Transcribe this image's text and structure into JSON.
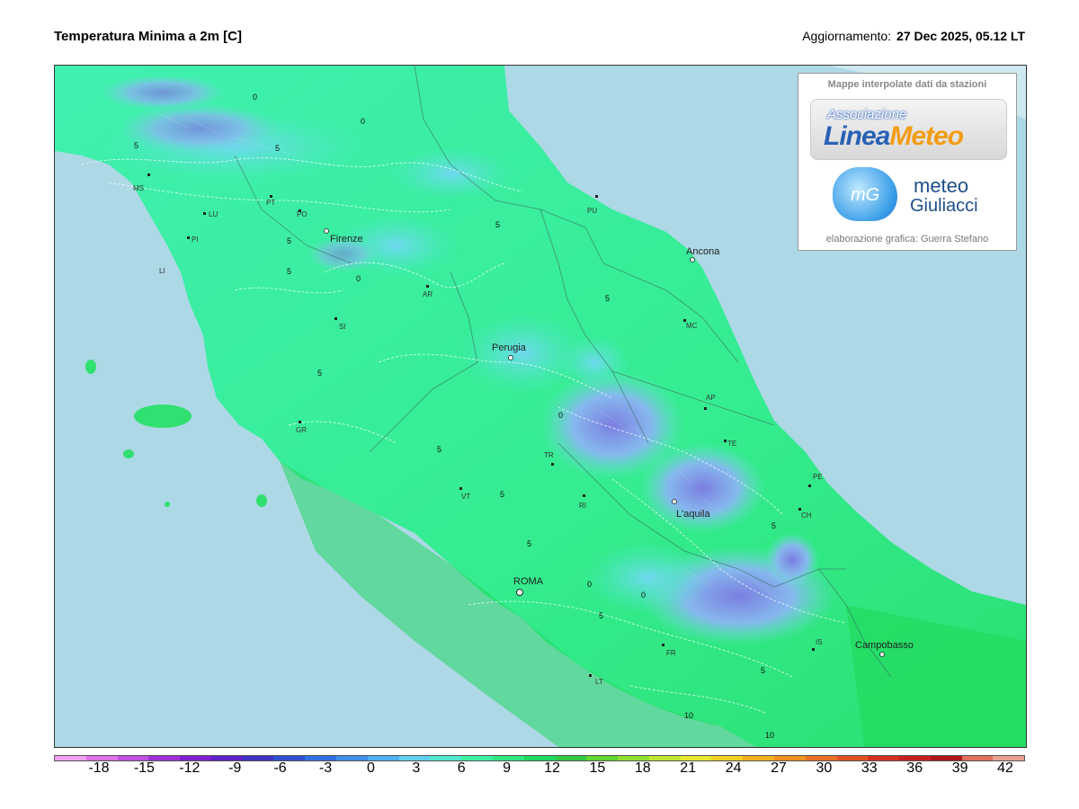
{
  "header": {
    "title": "Temperatura Minima a 2m [C]",
    "update_label": "Aggiornamento:",
    "update_value": "27 Dec 2025, 05.12 LT"
  },
  "logo": {
    "top_text": "Mappe interpolate dati da stazioni",
    "lineameteo_assoc": "Associazione",
    "lineameteo_name_a": "Linea",
    "lineameteo_name_b": "Meteo",
    "mg_abbrev": "mG",
    "mg_word1": "meteo",
    "mg_word2": "Giuliacci",
    "credit": "elaborazione grafica: Guerra Stefano"
  },
  "map": {
    "cities": [
      {
        "id": "firenze",
        "name": "Firenze"
      },
      {
        "id": "ancona",
        "name": "Ancona"
      },
      {
        "id": "perugia",
        "name": "Perugia"
      },
      {
        "id": "laquila",
        "name": "L'aquila"
      },
      {
        "id": "roma",
        "name": "ROMA"
      },
      {
        "id": "campobasso",
        "name": "Campobasso"
      }
    ],
    "provinces": [
      "MS",
      "LU",
      "PI",
      "LI",
      "PT",
      "PO",
      "AR",
      "SI",
      "GR",
      "PU",
      "MC",
      "AP",
      "TE",
      "PE",
      "CH",
      "TR",
      "RI",
      "VT",
      "FR",
      "LT",
      "IS"
    ],
    "isotherm_labels": [
      "0",
      "5",
      "10"
    ],
    "colors": {
      "sea": "#add8e6",
      "land_warm": "#2ee86a",
      "land_mid": "#3ff0a8",
      "land_cold": "#6fd0f0",
      "mountain_cold": "#7a8ae0"
    }
  },
  "colorbar": {
    "ticks": [
      "-18",
      "-15",
      "-12",
      "-9",
      "-6",
      "-3",
      "0",
      "3",
      "6",
      "9",
      "12",
      "15",
      "18",
      "21",
      "24",
      "27",
      "30",
      "33",
      "36",
      "39",
      "42"
    ],
    "colors": [
      "#f0a0f0",
      "#e070e8",
      "#c050e0",
      "#a030d8",
      "#8020d0",
      "#6020c8",
      "#4030c0",
      "#3050d0",
      "#3070e0",
      "#4090e8",
      "#50b0f0",
      "#60d0f0",
      "#50e8d0",
      "#40f0a0",
      "#30e880",
      "#20d860",
      "#30c840",
      "#60d830",
      "#90e030",
      "#c0e830",
      "#e8e830",
      "#f0d020",
      "#f0b020",
      "#f09020",
      "#e87020",
      "#e05020",
      "#d83020",
      "#c82020",
      "#b01818",
      "#e07060",
      "#e8a090"
    ]
  }
}
